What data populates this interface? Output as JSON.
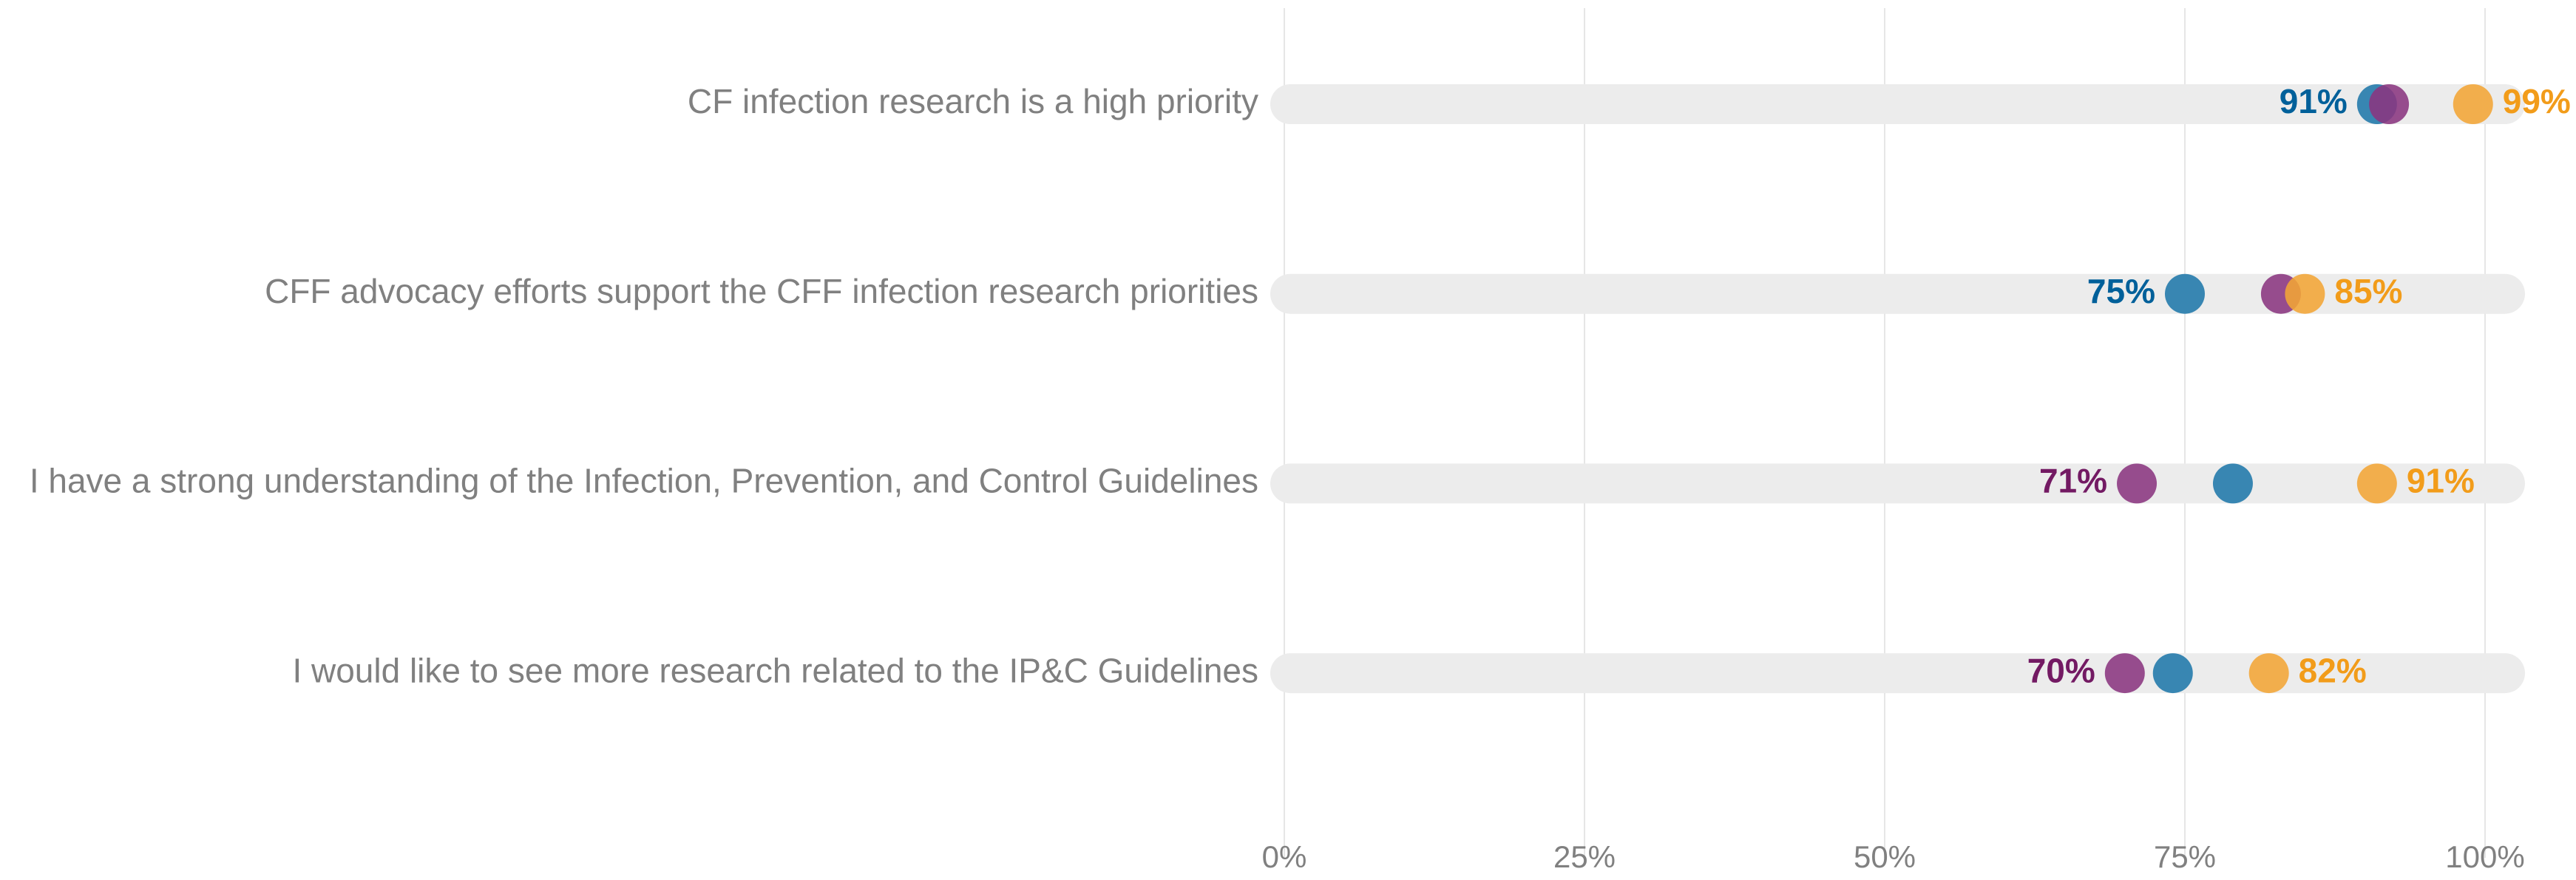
{
  "chart_data": {
    "type": "dot",
    "categories": [
      "CF infection research is a high priority",
      "CFF advocacy efforts support the CFF infection research priorities",
      "I have a strong understanding of the Infection, Prevention, and Control Guidelines",
      "I would like to see more research related to the IP&C Guidelines"
    ],
    "series": [
      {
        "color": "#1f77aa",
        "label_color": "#00609a",
        "values": [
          91,
          75,
          79,
          74
        ],
        "value_labels": [
          "91%",
          "75%",
          null,
          null
        ]
      },
      {
        "color": "#8a3580",
        "label_color": "#731a63",
        "values": [
          92,
          83,
          71,
          70
        ],
        "value_labels": [
          null,
          null,
          "71%",
          "70%"
        ]
      },
      {
        "color": "#f2a535",
        "label_color": "#f29c1a",
        "values": [
          99,
          85,
          91,
          82
        ],
        "value_labels": [
          "99%",
          "85%",
          "91%",
          "82%"
        ]
      }
    ],
    "xlim": [
      0,
      100
    ],
    "xticks": [
      {
        "value": 0,
        "label": "0%"
      },
      {
        "value": 25,
        "label": "25%"
      },
      {
        "value": 50,
        "label": "50%"
      },
      {
        "value": 75,
        "label": "75%"
      },
      {
        "value": 100,
        "label": "100%"
      }
    ],
    "grid": true
  }
}
